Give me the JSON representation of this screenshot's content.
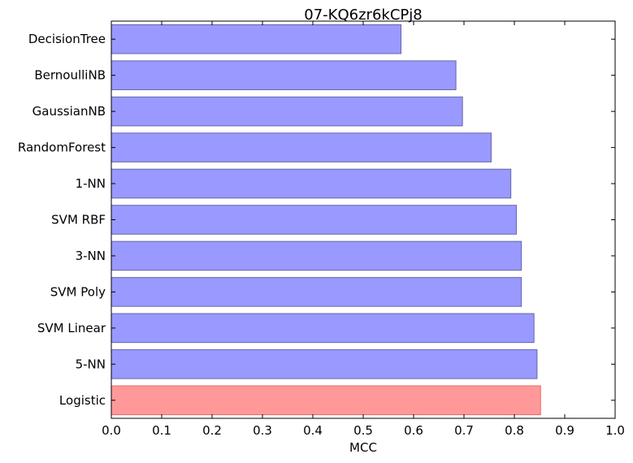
{
  "chart_data": {
    "type": "bar",
    "orientation": "horizontal",
    "title": "07-KQ6zr6kCPj8",
    "xlabel": "MCC",
    "ylabel": "",
    "xlim": [
      0.0,
      1.0
    ],
    "xticks": [
      "0.0",
      "0.1",
      "0.2",
      "0.3",
      "0.4",
      "0.5",
      "0.6",
      "0.7",
      "0.8",
      "0.9",
      "1.0"
    ],
    "grid": false,
    "categories": [
      "DecisionTree",
      "BernoulliNB",
      "GaussianNB",
      "RandomForest",
      "1-NN",
      "SVM RBF",
      "3-NN",
      "SVM Poly",
      "SVM Linear",
      "5-NN",
      "Logistic"
    ],
    "values": [
      0.575,
      0.684,
      0.697,
      0.754,
      0.793,
      0.804,
      0.814,
      0.814,
      0.839,
      0.845,
      0.852
    ],
    "colors": {
      "default": "#9999ff",
      "highlight": "#ff9999",
      "default_edge": "#6666aa",
      "highlight_edge": "#ee6666"
    },
    "highlight_category": "Logistic"
  }
}
